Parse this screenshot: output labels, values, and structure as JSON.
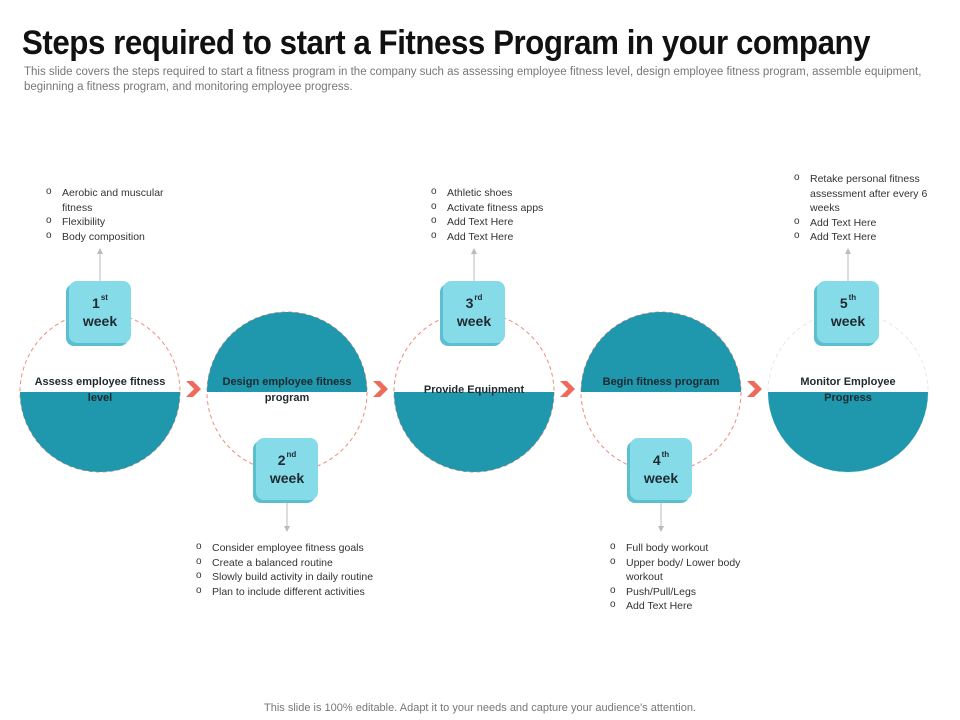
{
  "header": {
    "title": "Steps required to start a Fitness Program in your company",
    "subtitle": "This slide covers the steps required to start a fitness program in the company such as assessing employee fitness level, design employee fitness program, assemble equipment, beginning a fitness program,  and monitoring employee progress."
  },
  "colors": {
    "teal": "#1f97ad",
    "light_teal": "#86dbe8",
    "dash_red": "#f08b7c",
    "arrow": "#ee6a5a"
  },
  "stages": [
    {
      "label": "Assess employee fitness level",
      "week_num": "1",
      "week_sup": "st",
      "week_word": "week",
      "bullets": [
        "Aerobic and muscular fitness",
        "Flexibility",
        "Body composition"
      ]
    },
    {
      "label": "Design employee fitness program",
      "week_num": "2",
      "week_sup": "nd",
      "week_word": "week",
      "bullets": [
        "Consider employee fitness goals",
        "Create a balanced routine",
        "Slowly build activity  in daily routine",
        "Plan to include  different activities"
      ]
    },
    {
      "label": "Provide Equipment",
      "week_num": "3",
      "week_sup": "rd",
      "week_word": "week",
      "bullets": [
        "Athletic shoes",
        "Activate  fitness  apps",
        "Add Text Here",
        "Add Text Here"
      ]
    },
    {
      "label": "Begin fitness program",
      "week_num": "4",
      "week_sup": "th",
      "week_word": "week",
      "bullets": [
        "Full body workout",
        "Upper body/ Lower body workout",
        "Push/Pull/Legs",
        "Add Text Here"
      ]
    },
    {
      "label": "Monitor Employee Progress",
      "week_num": "5",
      "week_sup": "th",
      "week_word": "week",
      "bullets": [
        "Retake personal fitness assessment  after every 6 weeks",
        "Add Text Here",
        "Add Text Here"
      ]
    }
  ],
  "footer": "This slide is 100% editable. Adapt it to your needs and capture your audience's attention."
}
